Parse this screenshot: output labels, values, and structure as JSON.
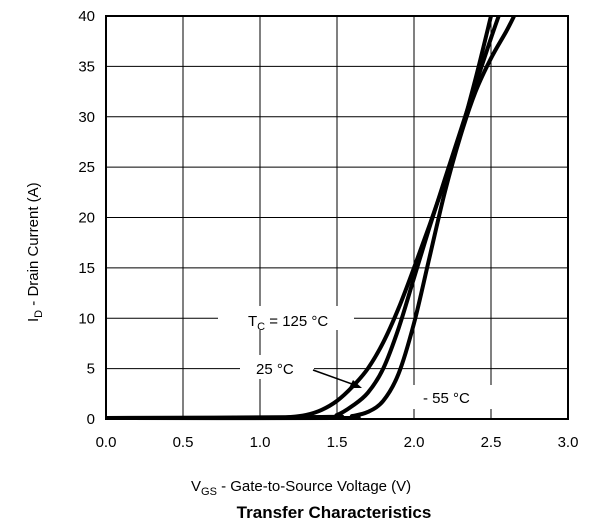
{
  "chart_data": {
    "type": "line",
    "title": "Transfer Characteristics",
    "xlabel": {
      "main": "V",
      "sub": "GS",
      "rest": " -  Gate-to-Source Voltage (V)"
    },
    "ylabel": {
      "main": "I",
      "sub": "D",
      "rest": " -  Drain Current (A)"
    },
    "xlim": [
      0,
      3.0
    ],
    "ylim": [
      0,
      40
    ],
    "xticks": [
      "0.0",
      "0.5",
      "1.0",
      "1.5",
      "2.0",
      "2.5",
      "3.0"
    ],
    "yticks": [
      "0",
      "5",
      "10",
      "15",
      "20",
      "25",
      "30",
      "35",
      "40"
    ],
    "grid": true,
    "series": [
      {
        "name": "125 °C",
        "x": [
          0.0,
          1.0,
          1.2,
          1.3,
          1.4,
          1.5,
          1.6,
          1.7,
          1.8,
          1.9,
          2.0,
          2.1,
          2.2,
          2.3,
          2.4,
          2.5
        ],
        "y": [
          0.1,
          0.1,
          0.2,
          0.4,
          0.9,
          1.8,
          3.2,
          5.0,
          7.6,
          11.0,
          15.0,
          19.2,
          23.6,
          28.2,
          33.8,
          40.0
        ]
      },
      {
        "name": "25 °C",
        "x": [
          0.0,
          1.4,
          1.5,
          1.6,
          1.7,
          1.8,
          1.9,
          2.0,
          2.1,
          2.2,
          2.3,
          2.4,
          2.5,
          2.55
        ],
        "y": [
          0.1,
          0.2,
          0.4,
          1.3,
          2.6,
          5.0,
          9.0,
          14.0,
          19.0,
          23.8,
          28.5,
          33.2,
          37.8,
          40.0
        ]
      },
      {
        "name": "- 55 °C",
        "x": [
          0.0,
          1.5,
          1.6,
          1.7,
          1.8,
          1.9,
          2.0,
          2.1,
          2.2,
          2.3,
          2.4,
          2.5,
          2.6,
          2.65
        ],
        "y": [
          0.1,
          0.1,
          0.3,
          0.7,
          1.8,
          4.5,
          9.5,
          16.0,
          22.5,
          28.0,
          32.5,
          35.8,
          38.5,
          40.0
        ]
      }
    ],
    "annotations": {
      "tc_label": {
        "main": "T",
        "sub": "C",
        "rest": " = 125 °C"
      },
      "mid_label": "25 °C",
      "low_label": "- 55 °C"
    }
  }
}
